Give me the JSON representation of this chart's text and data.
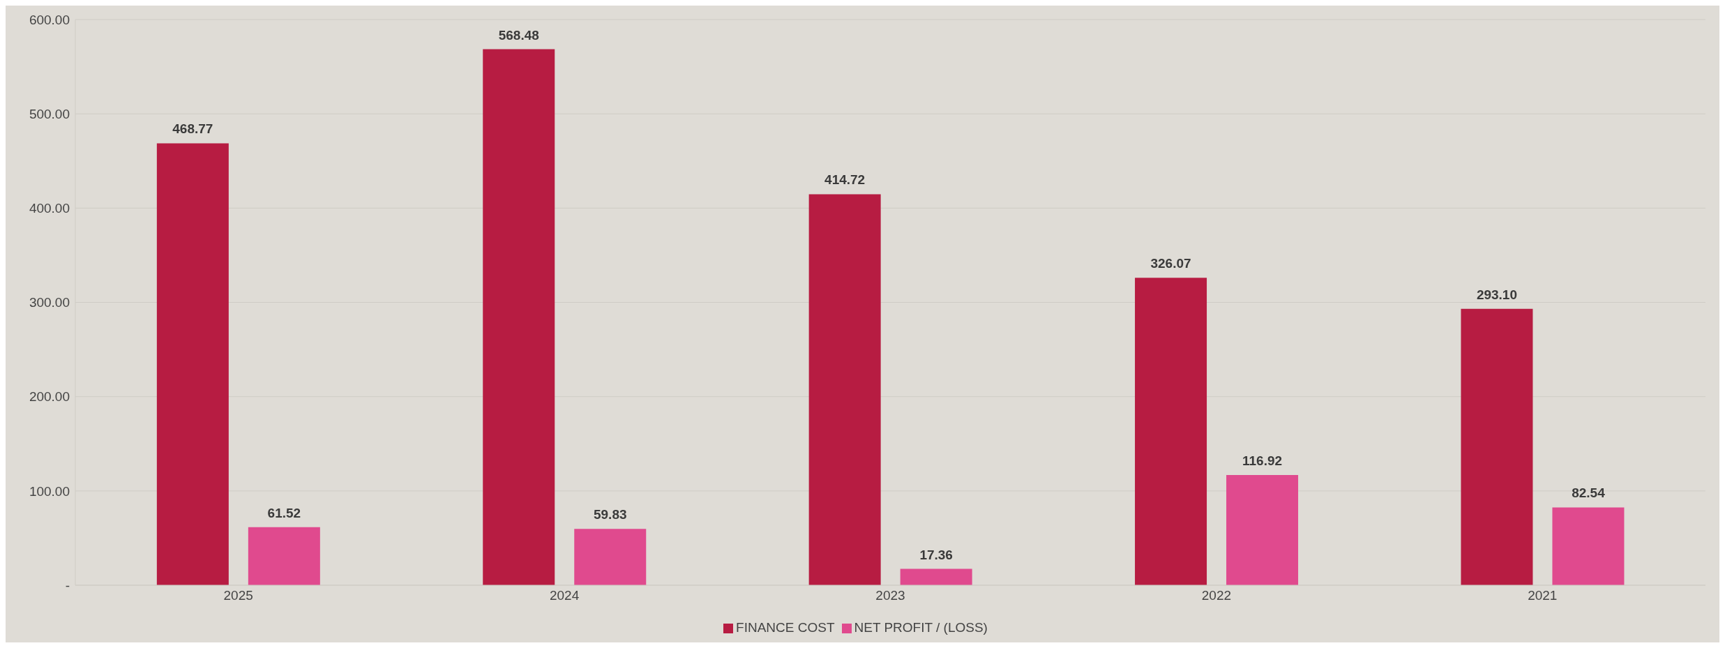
{
  "chart_data": {
    "type": "bar",
    "categories": [
      "2025",
      "2024",
      "2023",
      "2022",
      "2021"
    ],
    "series": [
      {
        "name": "FINANCE COST",
        "color": "#b71c42",
        "values": [
          468.77,
          568.48,
          414.72,
          326.07,
          293.1
        ],
        "value_labels": [
          "468.77",
          "568.48",
          "414.72",
          "326.07",
          "293.10"
        ]
      },
      {
        "name": "NET PROFIT / (LOSS)",
        "color": "#e04a8e",
        "values": [
          61.52,
          59.83,
          17.36,
          116.92,
          82.54
        ],
        "value_labels": [
          "61.52",
          "59.83",
          "17.36",
          "116.92",
          "82.54"
        ]
      }
    ],
    "ylim": [
      0,
      600
    ],
    "yticks": [
      {
        "value": 0,
        "label": "-"
      },
      {
        "value": 100,
        "label": "100.00"
      },
      {
        "value": 200,
        "label": "200.00"
      },
      {
        "value": 300,
        "label": "300.00"
      },
      {
        "value": 400,
        "label": "400.00"
      },
      {
        "value": 500,
        "label": "500.00"
      },
      {
        "value": 600,
        "label": "600.00"
      }
    ],
    "grid": "y",
    "legend": "bottom"
  }
}
